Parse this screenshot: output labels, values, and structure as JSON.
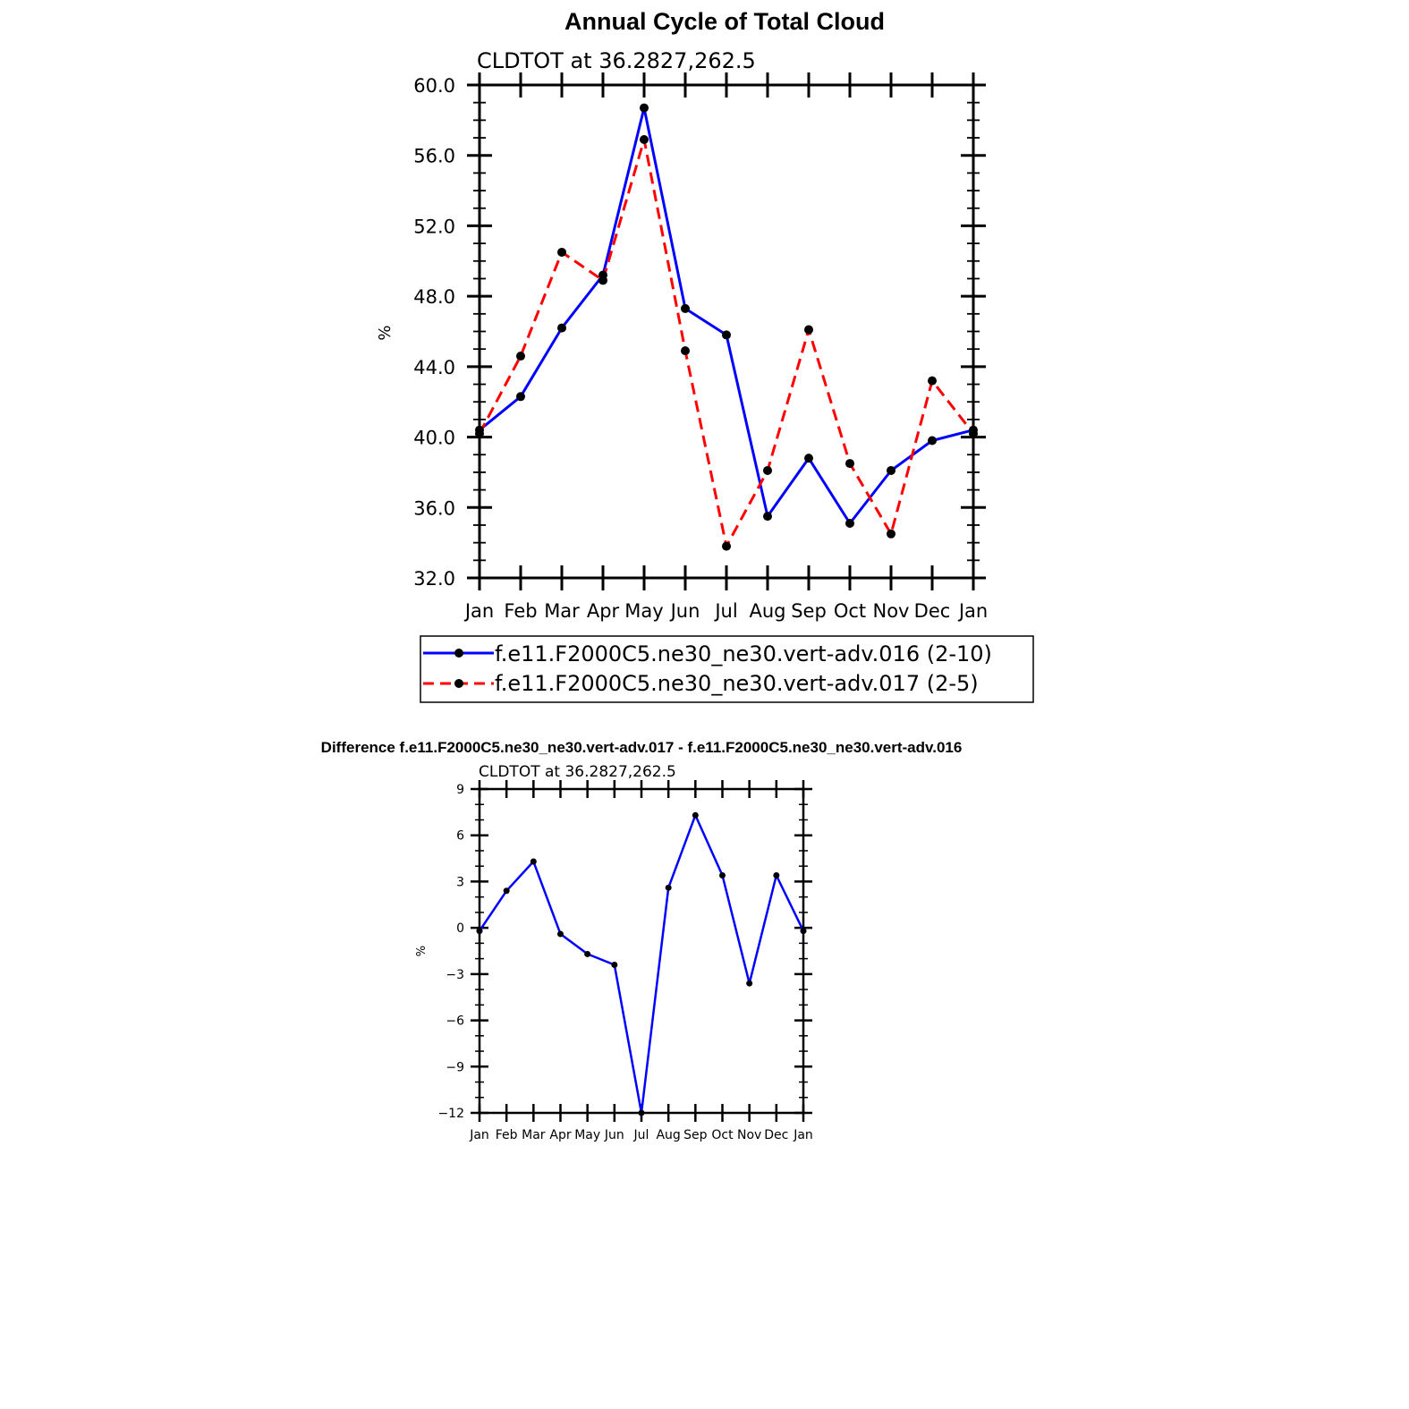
{
  "chart_data": [
    {
      "type": "line",
      "title": "Annual Cycle of Total Cloud",
      "subtitle": "CLDTOT at 36.2827,262.5",
      "xlabel": "",
      "ylabel": "%",
      "categories": [
        "Jan",
        "Feb",
        "Mar",
        "Apr",
        "May",
        "Jun",
        "Jul",
        "Aug",
        "Sep",
        "Oct",
        "Nov",
        "Dec",
        "Jan"
      ],
      "yticks": [
        "60.0",
        "56.0",
        "52.0",
        "48.0",
        "44.0",
        "40.0",
        "36.0",
        "32.0"
      ],
      "ylim": [
        32,
        60
      ],
      "legend_position": "bottom",
      "series": [
        {
          "name": "f.e11.F2000C5.ne30_ne30.vert-adv.016 (2-10)",
          "color": "#0000ff",
          "style": "solid",
          "values": [
            40.4,
            42.3,
            46.2,
            49.2,
            58.7,
            47.3,
            45.8,
            35.5,
            38.8,
            35.1,
            38.1,
            39.8,
            40.4
          ]
        },
        {
          "name": "f.e11.F2000C5.ne30_ne30.vert-adv.017 (2-5)",
          "color": "#ff0000",
          "style": "dashed",
          "values": [
            40.2,
            44.6,
            50.5,
            48.9,
            56.9,
            44.9,
            33.8,
            38.1,
            46.1,
            38.5,
            34.5,
            43.2,
            40.2
          ]
        }
      ]
    },
    {
      "type": "line",
      "title": "Difference f.e11.F2000C5.ne30_ne30.vert-adv.017 - f.e11.F2000C5.ne30_ne30.vert-adv.016",
      "subtitle": "CLDTOT  at  36.2827,262.5",
      "xlabel": "",
      "ylabel": "%",
      "categories": [
        "Jan",
        "Feb",
        "Mar",
        "Apr",
        "May",
        "Jun",
        "Jul",
        "Aug",
        "Sep",
        "Oct",
        "Nov",
        "Dec",
        "Jan"
      ],
      "yticks": [
        "9",
        "6",
        "3",
        "0",
        "−3",
        "−6",
        "−9",
        "−12"
      ],
      "ylim": [
        -12,
        9
      ],
      "series": [
        {
          "name": "difference",
          "color": "#0000ff",
          "style": "solid",
          "values": [
            -0.2,
            2.4,
            4.3,
            -0.4,
            -1.7,
            -2.4,
            -12.0,
            2.6,
            7.3,
            3.4,
            -3.6,
            3.4,
            -0.2
          ]
        }
      ]
    }
  ]
}
